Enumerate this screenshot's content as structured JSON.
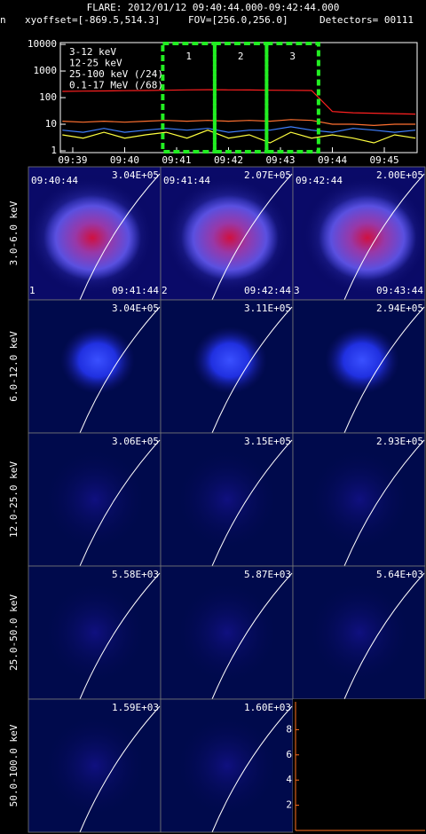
{
  "header": {
    "title": "FLARE: 2012/01/12 09:40:44.000-09:42:44.000",
    "prefix": "n",
    "xyoffset": "xyoffset=[-869.5,514.3]",
    "fov": "FOV=[256.0,256.0]",
    "detectors": "Detectors= 00111"
  },
  "chart_data": {
    "type": "line",
    "log_y": true,
    "xlim": [
      38.761,
      45.632
    ],
    "ylim": [
      0.86,
      11700
    ],
    "xticks": [
      {
        "value": 39,
        "label": "09:39"
      },
      {
        "value": 40,
        "label": "09:40"
      },
      {
        "value": 41,
        "label": "09:41"
      },
      {
        "value": 42,
        "label": "09:42"
      },
      {
        "value": 43,
        "label": "09:43"
      },
      {
        "value": 44,
        "label": "09:44"
      },
      {
        "value": 45,
        "label": "09:45"
      }
    ],
    "yticks": [
      1,
      10,
      100,
      1000,
      10000
    ],
    "x": [
      38.8,
      39.2,
      39.6,
      40.0,
      40.4,
      40.8,
      41.2,
      41.6,
      42.0,
      42.4,
      42.8,
      43.2,
      43.6,
      44.0,
      44.4,
      44.8,
      45.2,
      45.6
    ],
    "series": [
      {
        "name": "3-12 keV",
        "color": "#ff2020",
        "values": [
          172,
          175,
          178,
          182,
          186,
          190,
          195,
          198,
          196,
          194,
          190,
          188,
          185,
          30,
          27,
          26,
          25,
          24
        ]
      },
      {
        "name": "12-25 keV",
        "color": "#ff7030",
        "values": [
          13,
          12,
          13,
          12,
          13,
          14,
          13,
          14,
          13,
          14,
          13,
          15,
          14,
          10,
          10,
          9,
          10,
          10
        ]
      },
      {
        "name": "25-100 keV (/24)",
        "color": "#ffff40",
        "values": [
          4,
          3,
          5,
          3,
          4,
          5,
          3,
          6,
          3,
          4,
          2,
          5,
          3,
          4,
          3,
          2,
          4,
          3
        ]
      },
      {
        "name": "0.1-17 MeV (/68)",
        "color": "#4080ff",
        "values": [
          6,
          5,
          7,
          5,
          6,
          7,
          6,
          7,
          5,
          6,
          6,
          8,
          6,
          5,
          7,
          6,
          5,
          6
        ]
      }
    ],
    "intervals": [
      {
        "label": "1",
        "start": 40.733,
        "end": 41.733
      },
      {
        "label": "2",
        "start": 41.733,
        "end": 42.733
      },
      {
        "label": "3",
        "start": 42.733,
        "end": 43.733
      }
    ],
    "interval_color": "#22ee22"
  },
  "panels": {
    "rows": [
      {
        "label": "3.0-6.0 keV",
        "images": [
          {
            "peak": "3.04E+05",
            "start": "09:40:44",
            "end": "09:41:44",
            "index": "1"
          },
          {
            "peak": "2.07E+05",
            "start": "09:41:44",
            "end": "09:42:44",
            "index": "2"
          },
          {
            "peak": "2.00E+05",
            "start": "09:42:44",
            "end": "09:43:44",
            "index": "3"
          }
        ]
      },
      {
        "label": "6.0-12.0 keV",
        "images": [
          {
            "peak": "3.04E+05"
          },
          {
            "peak": "3.11E+05"
          },
          {
            "peak": "2.94E+05"
          }
        ]
      },
      {
        "label": "12.0-25.0 keV",
        "images": [
          {
            "peak": "3.06E+05"
          },
          {
            "peak": "3.15E+05"
          },
          {
            "peak": "2.93E+05"
          }
        ]
      },
      {
        "label": "25.0-50.0 keV",
        "images": [
          {
            "peak": "5.58E+03"
          },
          {
            "peak": "5.87E+03"
          },
          {
            "peak": "5.64E+03"
          }
        ]
      },
      {
        "label": "50.0-100.0 keV",
        "images": [
          {
            "peak": "1.59E+03"
          },
          {
            "peak": "1.60E+03"
          }
        ]
      }
    ],
    "empty_panel_ylim": [
      0,
      10
    ],
    "empty_panel_yticks": [
      2,
      4,
      6,
      8
    ]
  }
}
